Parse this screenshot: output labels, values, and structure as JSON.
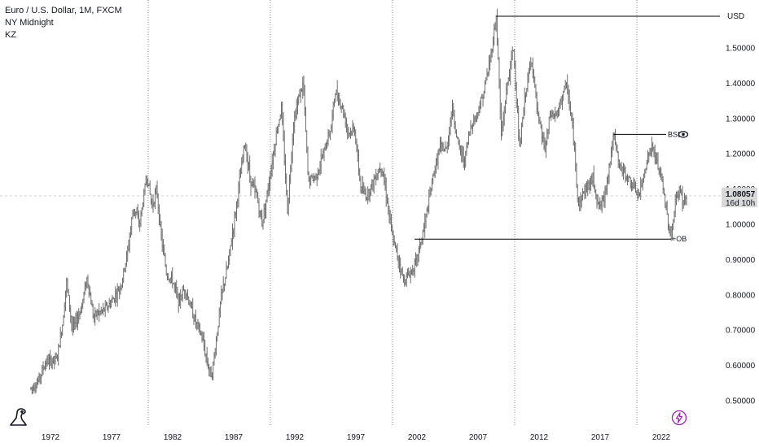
{
  "header": {
    "symbol_line": "Euro / U.S. Dollar, 1M, FXCM",
    "session_line": "NY Midnight",
    "indicator_line": "KZ"
  },
  "colors": {
    "price": "#6f6f6f",
    "line": "#000000",
    "grid": "#8a8a8a",
    "crosshair": "#cfcfcf",
    "tag_bg": "#d9d9d9",
    "accent_purple": "#9c27b0"
  },
  "icons": [
    "dinosaur-logo-icon",
    "eye-icon",
    "lightning-bolt-icon"
  ],
  "price_tag": {
    "value": "1.08057",
    "countdown": "16d 10h"
  },
  "annotations": {
    "usd_label": "USD",
    "bsl_label": "BSL",
    "ob_label": "+OB"
  },
  "chart_data": {
    "type": "ohlc",
    "title": "Euro / U.S. Dollar, 1M, FXCM",
    "x_ticks": [
      "1972",
      "1977",
      "1982",
      "1987",
      "1992",
      "1997",
      "2002",
      "2007",
      "2012",
      "2017",
      "2022"
    ],
    "y_ticks": [
      "0.50000",
      "0.60000",
      "0.70000",
      "0.80000",
      "0.90000",
      "1.00000",
      "1.10000",
      "1.20000",
      "1.30000",
      "1.40000",
      "1.50000"
    ],
    "xlim": [
      1970,
      2025.5
    ],
    "ylim": [
      0.475,
      1.6
    ],
    "period_separators": [
      1980,
      1990,
      2000,
      2010,
      2020
    ],
    "series": [
      {
        "values": [
          [
            1970.4,
            0.535
          ],
          [
            1971.0,
            0.555
          ],
          [
            1971.6,
            0.61
          ],
          [
            1972.5,
            0.615
          ],
          [
            1973.0,
            0.72
          ],
          [
            1973.3,
            0.84
          ],
          [
            1973.8,
            0.7
          ],
          [
            1974.5,
            0.76
          ],
          [
            1975.0,
            0.85
          ],
          [
            1975.5,
            0.74
          ],
          [
            1976.5,
            0.76
          ],
          [
            1977.0,
            0.78
          ],
          [
            1977.8,
            0.83
          ],
          [
            1978.3,
            0.92
          ],
          [
            1978.8,
            1.05
          ],
          [
            1979.3,
            1.0
          ],
          [
            1979.9,
            1.14
          ],
          [
            1980.3,
            1.05
          ],
          [
            1980.7,
            1.1
          ],
          [
            1981.0,
            0.98
          ],
          [
            1981.5,
            0.86
          ],
          [
            1982.0,
            0.84
          ],
          [
            1982.5,
            0.78
          ],
          [
            1983.0,
            0.82
          ],
          [
            1983.7,
            0.74
          ],
          [
            1984.4,
            0.68
          ],
          [
            1984.9,
            0.6
          ],
          [
            1985.2,
            0.57
          ],
          [
            1985.6,
            0.68
          ],
          [
            1986.0,
            0.8
          ],
          [
            1986.5,
            0.88
          ],
          [
            1987.2,
            1.05
          ],
          [
            1987.9,
            1.23
          ],
          [
            1988.4,
            1.12
          ],
          [
            1988.9,
            1.08
          ],
          [
            1989.3,
            1.0
          ],
          [
            1989.8,
            1.1
          ],
          [
            1990.5,
            1.26
          ],
          [
            1990.9,
            1.33
          ],
          [
            1991.4,
            1.04
          ],
          [
            1991.9,
            1.29
          ],
          [
            1992.4,
            1.37
          ],
          [
            1992.7,
            1.4
          ],
          [
            1993.1,
            1.12
          ],
          [
            1993.8,
            1.14
          ],
          [
            1994.5,
            1.22
          ],
          [
            1995.0,
            1.28
          ],
          [
            1995.3,
            1.38
          ],
          [
            1995.9,
            1.33
          ],
          [
            1996.4,
            1.26
          ],
          [
            1996.9,
            1.27
          ],
          [
            1997.4,
            1.1
          ],
          [
            1997.9,
            1.08
          ],
          [
            1998.4,
            1.12
          ],
          [
            1998.8,
            1.15
          ],
          [
            1999.1,
            1.17
          ],
          [
            1999.6,
            1.06
          ],
          [
            2000.0,
            0.96
          ],
          [
            2000.5,
            0.9
          ],
          [
            2000.9,
            0.84
          ],
          [
            2001.4,
            0.86
          ],
          [
            2001.9,
            0.89
          ],
          [
            2002.4,
            0.96
          ],
          [
            2002.9,
            1.05
          ],
          [
            2003.4,
            1.15
          ],
          [
            2003.9,
            1.22
          ],
          [
            2004.4,
            1.21
          ],
          [
            2004.9,
            1.33
          ],
          [
            2005.4,
            1.22
          ],
          [
            2005.9,
            1.18
          ],
          [
            2006.4,
            1.28
          ],
          [
            2006.9,
            1.31
          ],
          [
            2007.5,
            1.38
          ],
          [
            2008.0,
            1.47
          ],
          [
            2008.5,
            1.59
          ],
          [
            2008.9,
            1.25
          ],
          [
            2009.4,
            1.4
          ],
          [
            2009.9,
            1.5
          ],
          [
            2010.4,
            1.21
          ],
          [
            2010.9,
            1.38
          ],
          [
            2011.4,
            1.47
          ],
          [
            2011.9,
            1.3
          ],
          [
            2012.5,
            1.21
          ],
          [
            2012.9,
            1.31
          ],
          [
            2013.5,
            1.31
          ],
          [
            2014.0,
            1.38
          ],
          [
            2014.3,
            1.39
          ],
          [
            2014.8,
            1.25
          ],
          [
            2015.2,
            1.06
          ],
          [
            2015.8,
            1.1
          ],
          [
            2016.4,
            1.13
          ],
          [
            2016.9,
            1.05
          ],
          [
            2017.3,
            1.07
          ],
          [
            2017.8,
            1.18
          ],
          [
            2018.1,
            1.25
          ],
          [
            2018.6,
            1.16
          ],
          [
            2019.1,
            1.14
          ],
          [
            2019.8,
            1.1
          ],
          [
            2020.2,
            1.08
          ],
          [
            2020.8,
            1.18
          ],
          [
            2021.2,
            1.22
          ],
          [
            2021.6,
            1.18
          ],
          [
            2022.0,
            1.13
          ],
          [
            2022.5,
            1.02
          ],
          [
            2022.8,
            0.96
          ],
          [
            2023.2,
            1.07
          ],
          [
            2023.5,
            1.1
          ],
          [
            2023.8,
            1.06
          ],
          [
            2024.1,
            1.08
          ]
        ]
      }
    ],
    "annotations": [
      {
        "label": "USD",
        "y": 1.59,
        "x_start": 2008.5
      },
      {
        "label": "BSL",
        "y": 1.255,
        "x_start": 2018.1,
        "x_end": 2022.4
      },
      {
        "label": "+OB",
        "y": 0.958,
        "x_start": 2001.8,
        "x_end": 2022.8
      }
    ],
    "last_price": 1.08057
  }
}
